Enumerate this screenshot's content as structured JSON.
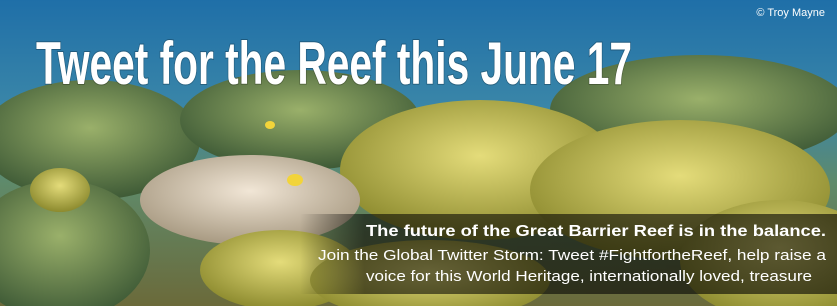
{
  "banner": {
    "credit": "© Troy Mayne",
    "title": "Tweet for the Reef this June 17",
    "headline": "The future of the Great Barrier Reef is in the balance.",
    "body_lines": [
      "Join the Global Twitter Storm: Tweet #FightfortheReef, help raise a",
      "voice for this World Heritage, internationally loved, treasure"
    ]
  }
}
